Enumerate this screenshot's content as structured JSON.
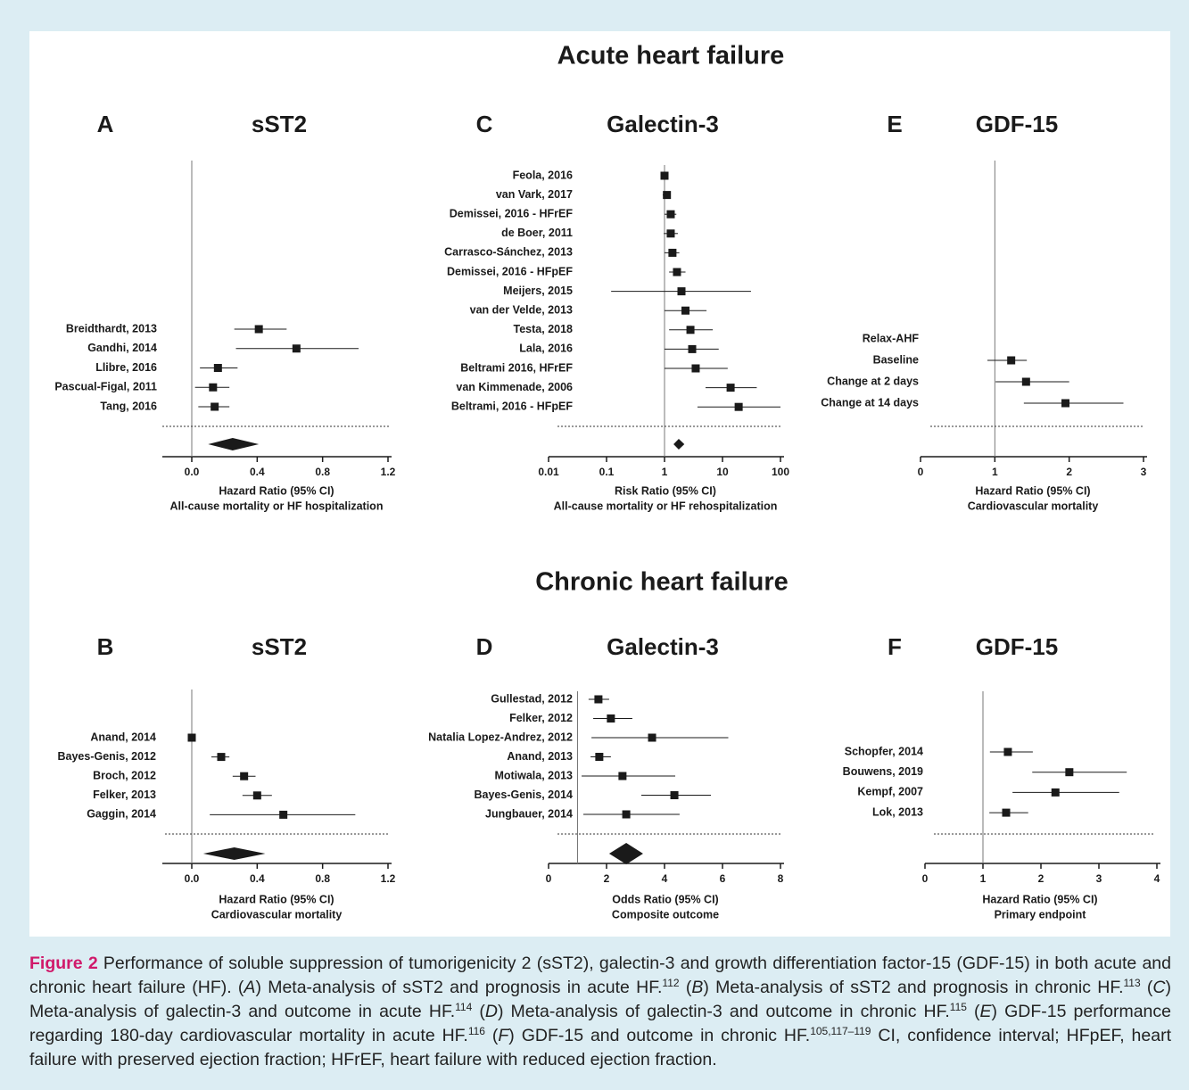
{
  "sections": [
    "Acute heart failure",
    "Chronic heart failure"
  ],
  "chart_data": [
    {
      "type": "forest",
      "panel": "A",
      "title": "sST2",
      "xlabel": "Hazard Ratio (95% CI)",
      "subtitle": "All-cause mortality or HF hospitalization",
      "categories": [
        "Breidthardt, 2013",
        "Gandhi, 2014",
        "Llibre, 2016",
        "Pascual-Figal, 2011",
        "Tang, 2016"
      ],
      "values": [
        0.41,
        0.64,
        0.16,
        0.13,
        0.14
      ],
      "ci_low": [
        0.26,
        0.27,
        0.05,
        0.02,
        0.04
      ],
      "ci_high": [
        0.58,
        1.02,
        0.28,
        0.23,
        0.23
      ],
      "pooled": {
        "value": 0.25,
        "ci_low": 0.1,
        "ci_high": 0.41
      },
      "reference_line": 0,
      "xlim": [
        -0.18,
        1.2
      ],
      "xticks": [
        {
          "value": 0,
          "label": "0.0"
        },
        0.4,
        0.8,
        1.2
      ],
      "log_x": false,
      "color": "#1a1a1a"
    },
    {
      "type": "forest",
      "panel": "C",
      "title": "Galectin-3",
      "xlabel": "Risk Ratio (95% CI)",
      "subtitle": "All-cause mortality or HF rehospitalization",
      "categories": [
        "Feola, 2016",
        "van Vark, 2017",
        "Demissei, 2016 - HFrEF",
        "de Boer, 2011",
        "Carrasco-Sánchez, 2013",
        "Demissei, 2016 - HFpEF",
        "Meijers, 2015",
        "van der Velde, 2013",
        "Testa, 2018",
        "Lala, 2016",
        "Beltrami 2016, HFrEF",
        "van Kimmenade, 2006",
        "Beltrami, 2016 - HFpEF"
      ],
      "values": [
        1.0,
        1.1,
        1.28,
        1.28,
        1.37,
        1.64,
        1.96,
        2.3,
        2.8,
        3.0,
        3.45,
        13.8,
        19
      ],
      "ci_low": [
        0.97,
        0.93,
        1.0,
        0.97,
        1.0,
        1.2,
        0.12,
        1.0,
        1.2,
        1.0,
        1.0,
        5.1,
        3.7
      ],
      "ci_high": [
        1.03,
        1.2,
        1.6,
        1.7,
        1.8,
        2.3,
        31,
        5.3,
        6.8,
        8.6,
        12.3,
        39,
        100
      ],
      "pooled": {
        "value": 1.76,
        "ci_low": 1.43,
        "ci_high": 2.2
      },
      "reference_line": 1,
      "xlim": [
        0.01,
        100
      ],
      "xticks": [
        0.01,
        0.1,
        1,
        10,
        100
      ],
      "log_x": true,
      "color": "#1a1a1a"
    },
    {
      "type": "forest",
      "panel": "E",
      "title": "GDF-15",
      "xlabel": "Hazard Ratio (95% CI)",
      "subtitle": "Cardiovascular mortality",
      "categories": [
        "Relax-AHF",
        "Baseline",
        "Change at 2 days",
        "Change at 14 days"
      ],
      "values": [
        null,
        1.22,
        1.42,
        1.95
      ],
      "ci_low": [
        null,
        0.9,
        1.01,
        1.39
      ],
      "ci_high": [
        null,
        1.43,
        2.0,
        2.73
      ],
      "reference_line": 1,
      "xlim": [
        0,
        3
      ],
      "xticks": [
        0,
        1,
        2,
        3
      ],
      "log_x": false,
      "color": "#1a1a1a"
    },
    {
      "type": "forest",
      "panel": "B",
      "title": "sST2",
      "xlabel": "Hazard Ratio (95% CI)",
      "subtitle": "Cardiovascular mortality",
      "categories": [
        "Anand, 2014",
        "Bayes-Genis, 2012",
        "Broch, 2012",
        "Felker, 2013",
        "Gaggin, 2014"
      ],
      "values": [
        0.0,
        0.18,
        0.32,
        0.4,
        0.56
      ],
      "ci_low": [
        0.0,
        0.12,
        0.25,
        0.31,
        0.11
      ],
      "ci_high": [
        0.01,
        0.23,
        0.39,
        0.49,
        1.0
      ],
      "pooled": {
        "value": 0.26,
        "ci_low": 0.07,
        "ci_high": 0.45
      },
      "reference_line": 0,
      "xlim": [
        -0.18,
        1.2
      ],
      "xticks": [
        {
          "value": 0,
          "label": "0.0"
        },
        0.4,
        0.8,
        1.2
      ],
      "log_x": false,
      "color": "#1a1a1a"
    },
    {
      "type": "forest",
      "panel": "D",
      "title": "Galectin-3",
      "xlabel": "Odds Ratio (95% CI)",
      "subtitle": "Composite outcome",
      "categories": [
        "Gullestad, 2012",
        "Felker, 2012",
        "Natalia Lopez-Andrez, 2012",
        "Anand, 2013",
        "Motiwala, 2013",
        "Bayes-Genis, 2014",
        "Jungbauer, 2014"
      ],
      "values": [
        1.72,
        2.15,
        3.57,
        1.75,
        2.55,
        4.34,
        2.68
      ],
      "ci_low": [
        1.38,
        1.54,
        1.48,
        1.45,
        1.14,
        3.2,
        1.2
      ],
      "ci_high": [
        2.09,
        2.89,
        6.2,
        2.15,
        4.37,
        5.6,
        4.52
      ],
      "pooled": {
        "value": 2.68,
        "ci_low": 2.09,
        "ci_high": 3.26
      },
      "reference_line": 1,
      "xlim": [
        0,
        8
      ],
      "xticks": [
        0,
        2,
        4,
        6,
        8
      ],
      "log_x": false,
      "color": "#1a1a1a"
    },
    {
      "type": "forest",
      "panel": "F",
      "title": "GDF-15",
      "xlabel": "Hazard Ratio (95% CI)",
      "subtitle": "Primary endpoint",
      "categories": [
        "Schopfer, 2014",
        "Bouwens, 2019",
        "Kempf, 2007",
        "Lok, 2013"
      ],
      "values": [
        1.43,
        2.49,
        2.25,
        1.4
      ],
      "ci_low": [
        1.12,
        1.85,
        1.51,
        1.11
      ],
      "ci_high": [
        1.86,
        3.48,
        3.35,
        1.78
      ],
      "reference_line": 1,
      "xlim": [
        0,
        4
      ],
      "xticks": [
        0,
        1,
        2,
        3,
        4
      ],
      "log_x": false,
      "color": "#1a1a1a"
    }
  ],
  "caption": [
    {
      "text": "Figure 2",
      "style": "label"
    },
    {
      "text": " Performance of soluble suppression of tumorigenicity 2 (sST2), galectin-3 and growth differentiation factor-15 (GDF-15) in both acute and chronic heart failure (HF). ("
    },
    {
      "text": "A",
      "style": "italic"
    },
    {
      "text": ") Meta-analysis of sST2 and prognosis in acute HF."
    },
    {
      "text": "112",
      "style": "sup"
    },
    {
      "text": " ("
    },
    {
      "text": "B",
      "style": "italic"
    },
    {
      "text": ") Meta-analysis of sST2 and prognosis in chronic HF."
    },
    {
      "text": "113",
      "style": "sup"
    },
    {
      "text": " ("
    },
    {
      "text": "C",
      "style": "italic"
    },
    {
      "text": ") Meta-analysis of galectin-3 and outcome in acute HF."
    },
    {
      "text": "114",
      "style": "sup"
    },
    {
      "text": " ("
    },
    {
      "text": "D",
      "style": "italic"
    },
    {
      "text": ") Meta-analysis of galectin-3 and outcome in chronic HF."
    },
    {
      "text": "115",
      "style": "sup"
    },
    {
      "text": " ("
    },
    {
      "text": "E",
      "style": "italic"
    },
    {
      "text": ") GDF-15 performance regarding 180-day cardiovascular mortality in acute HF."
    },
    {
      "text": "116",
      "style": "sup"
    },
    {
      "text": " ("
    },
    {
      "text": "F",
      "style": "italic"
    },
    {
      "text": ") GDF-15 and outcome in chronic HF."
    },
    {
      "text": "105,117–119",
      "style": "sup"
    },
    {
      "text": " CI, confidence interval; HFpEF, heart failure with preserved ejection fraction; HFrEF, heart failure with reduced ejection fraction."
    }
  ]
}
